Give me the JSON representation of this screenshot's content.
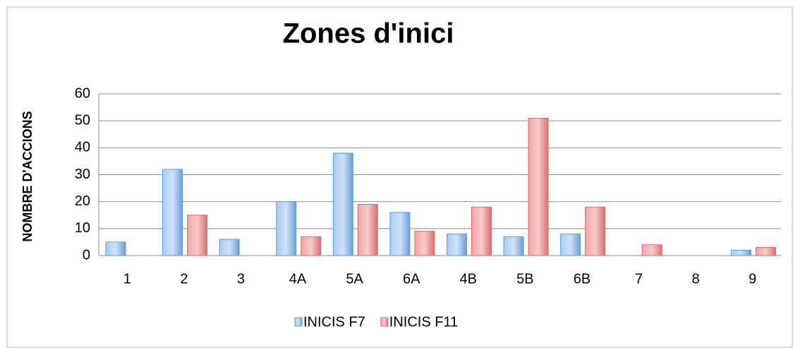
{
  "chart_data": {
    "type": "bar",
    "title": "Zones d'inici",
    "y_label": "NOMBRE  D'ACCIONS",
    "categories": [
      "1",
      "2",
      "3",
      "4A",
      "5A",
      "6A",
      "4B",
      "5B",
      "6B",
      "7",
      "8",
      "9"
    ],
    "series": [
      {
        "name": "INICIS F7",
        "color": "#5b9bd5",
        "values": [
          5,
          32,
          6,
          20,
          38,
          16,
          8,
          7,
          8,
          0,
          0,
          2
        ]
      },
      {
        "name": "INICIS F11",
        "color": "#e0696a",
        "values": [
          0,
          15,
          0,
          7,
          19,
          9,
          18,
          51,
          18,
          4,
          0,
          3
        ]
      }
    ],
    "ylim": [
      0,
      60
    ],
    "yticks": [
      0,
      10,
      20,
      30,
      40,
      50,
      60
    ],
    "grid": true,
    "legend": "bottom"
  }
}
